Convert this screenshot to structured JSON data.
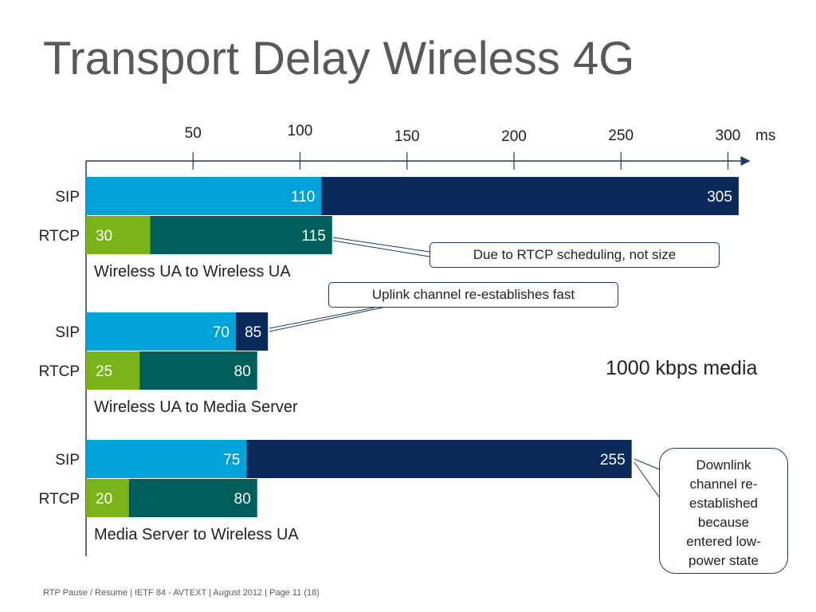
{
  "title": "Transport Delay Wireless 4G",
  "footer": "RTP Pause / Resume  |  IETF 84 - AVTEXT  |  August 2012  |  Page 11 (18)",
  "media_note": "1000 kbps media",
  "callouts": {
    "rtcp": "Due to RTCP scheduling, not size",
    "uplink": "Uplink channel re-establishes fast",
    "downlink": [
      "Downlink",
      "channel re-",
      "established",
      "because",
      "entered low-",
      "power state"
    ]
  },
  "colors": {
    "sip_first": "#00a3d9",
    "sip_total": "#0b2a5c",
    "rtcp_first": "#7ab317",
    "rtcp_total": "#005f5a",
    "axis": "#1f3864"
  },
  "chart_data": {
    "type": "bar",
    "orientation": "horizontal",
    "x_unit": "ms",
    "x_ticks": [
      50,
      100,
      150,
      200,
      250,
      300
    ],
    "xlim": [
      0,
      310
    ],
    "groups": [
      {
        "label": "Wireless UA to Wireless UA",
        "bars": [
          {
            "label": "SIP",
            "first": 110,
            "total": 305
          },
          {
            "label": "RTCP",
            "first": 30,
            "total": 115
          }
        ]
      },
      {
        "label": "Wireless UA to Media Server",
        "bars": [
          {
            "label": "SIP",
            "first": 70,
            "total": 85
          },
          {
            "label": "RTCP",
            "first": 25,
            "total": 80
          }
        ]
      },
      {
        "label": "Media Server to Wireless UA",
        "bars": [
          {
            "label": "SIP",
            "first": 75,
            "total": 255
          },
          {
            "label": "RTCP",
            "first": 20,
            "total": 80
          }
        ]
      }
    ]
  }
}
